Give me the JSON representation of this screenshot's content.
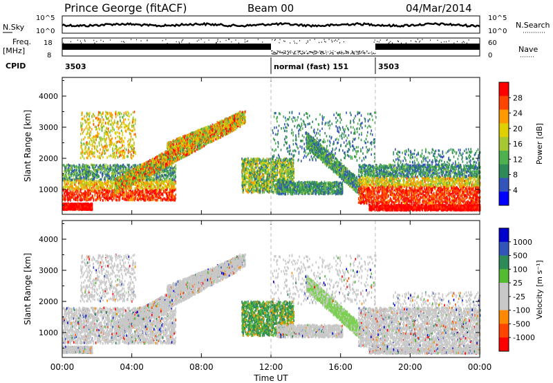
{
  "header": {
    "title": "Prince George (fitACF)",
    "beam": "Beam 00",
    "date": "04/Mar/2014"
  },
  "strips": {
    "nsky_label": "N.Sky",
    "nsky_ticks": [
      "10^5",
      "10^0"
    ],
    "nsearch_label": "N.Search",
    "nsearch_ticks": [
      "10^5",
      "10^0"
    ],
    "freq_label_1": "Freq.",
    "freq_label_2": "[MHz]",
    "freq_ticks": [
      "18",
      "8"
    ],
    "nave_label": "Nave",
    "nave_ticks": [
      "60",
      "0"
    ],
    "cpid_label": "CPID",
    "cpid_segments": [
      {
        "label": "3503",
        "start_h": 0,
        "end_h": 12
      },
      {
        "label": "normal (fast) 151",
        "start_h": 12,
        "end_h": 18
      },
      {
        "label": "3503",
        "start_h": 18,
        "end_h": 24
      }
    ]
  },
  "chart_data": [
    {
      "type": "heatmap",
      "name": "power",
      "xlabel": "Time UT",
      "ylabel": "Slant Range [km]",
      "x_ticks": [
        "00:00",
        "04:00",
        "08:00",
        "12:00",
        "16:00",
        "20:00",
        "00:00"
      ],
      "xlim_hours": [
        0,
        24
      ],
      "ylim": [
        200,
        4600
      ],
      "y_ticks": [
        1000,
        2000,
        3000,
        4000
      ],
      "colorbar_label": "Power [dB]",
      "colorbar_ticks": [
        "28",
        "24",
        "20",
        "16",
        "12",
        "8",
        "4"
      ],
      "colorbar_range": [
        0,
        30
      ],
      "colors": [
        "#0000ff",
        "#3355bb",
        "#2e8b57",
        "#4fb04f",
        "#a8c832",
        "#e0d000",
        "#ff9900",
        "#ff4400",
        "#ff0000"
      ]
    },
    {
      "type": "heatmap",
      "name": "velocity",
      "xlabel": "Time UT",
      "ylabel": "Slant Range [km]",
      "x_ticks": [
        "00:00",
        "04:00",
        "08:00",
        "12:00",
        "16:00",
        "20:00",
        "00:00"
      ],
      "xlim_hours": [
        0,
        24
      ],
      "ylim": [
        200,
        4600
      ],
      "y_ticks": [
        1000,
        2000,
        3000,
        4000
      ],
      "colorbar_label": "Velocity [m s⁻¹]",
      "colorbar_ticks": [
        "1000",
        "500",
        "100",
        "25",
        "-25",
        "-100",
        "-500",
        "-1000"
      ],
      "colors": [
        "#ff0000",
        "#ff4400",
        "#ff8800",
        "#c8c8c8",
        "#c8c8c8",
        "#55bb33",
        "#2e8b57",
        "#3355bb",
        "#0000cc"
      ]
    }
  ]
}
